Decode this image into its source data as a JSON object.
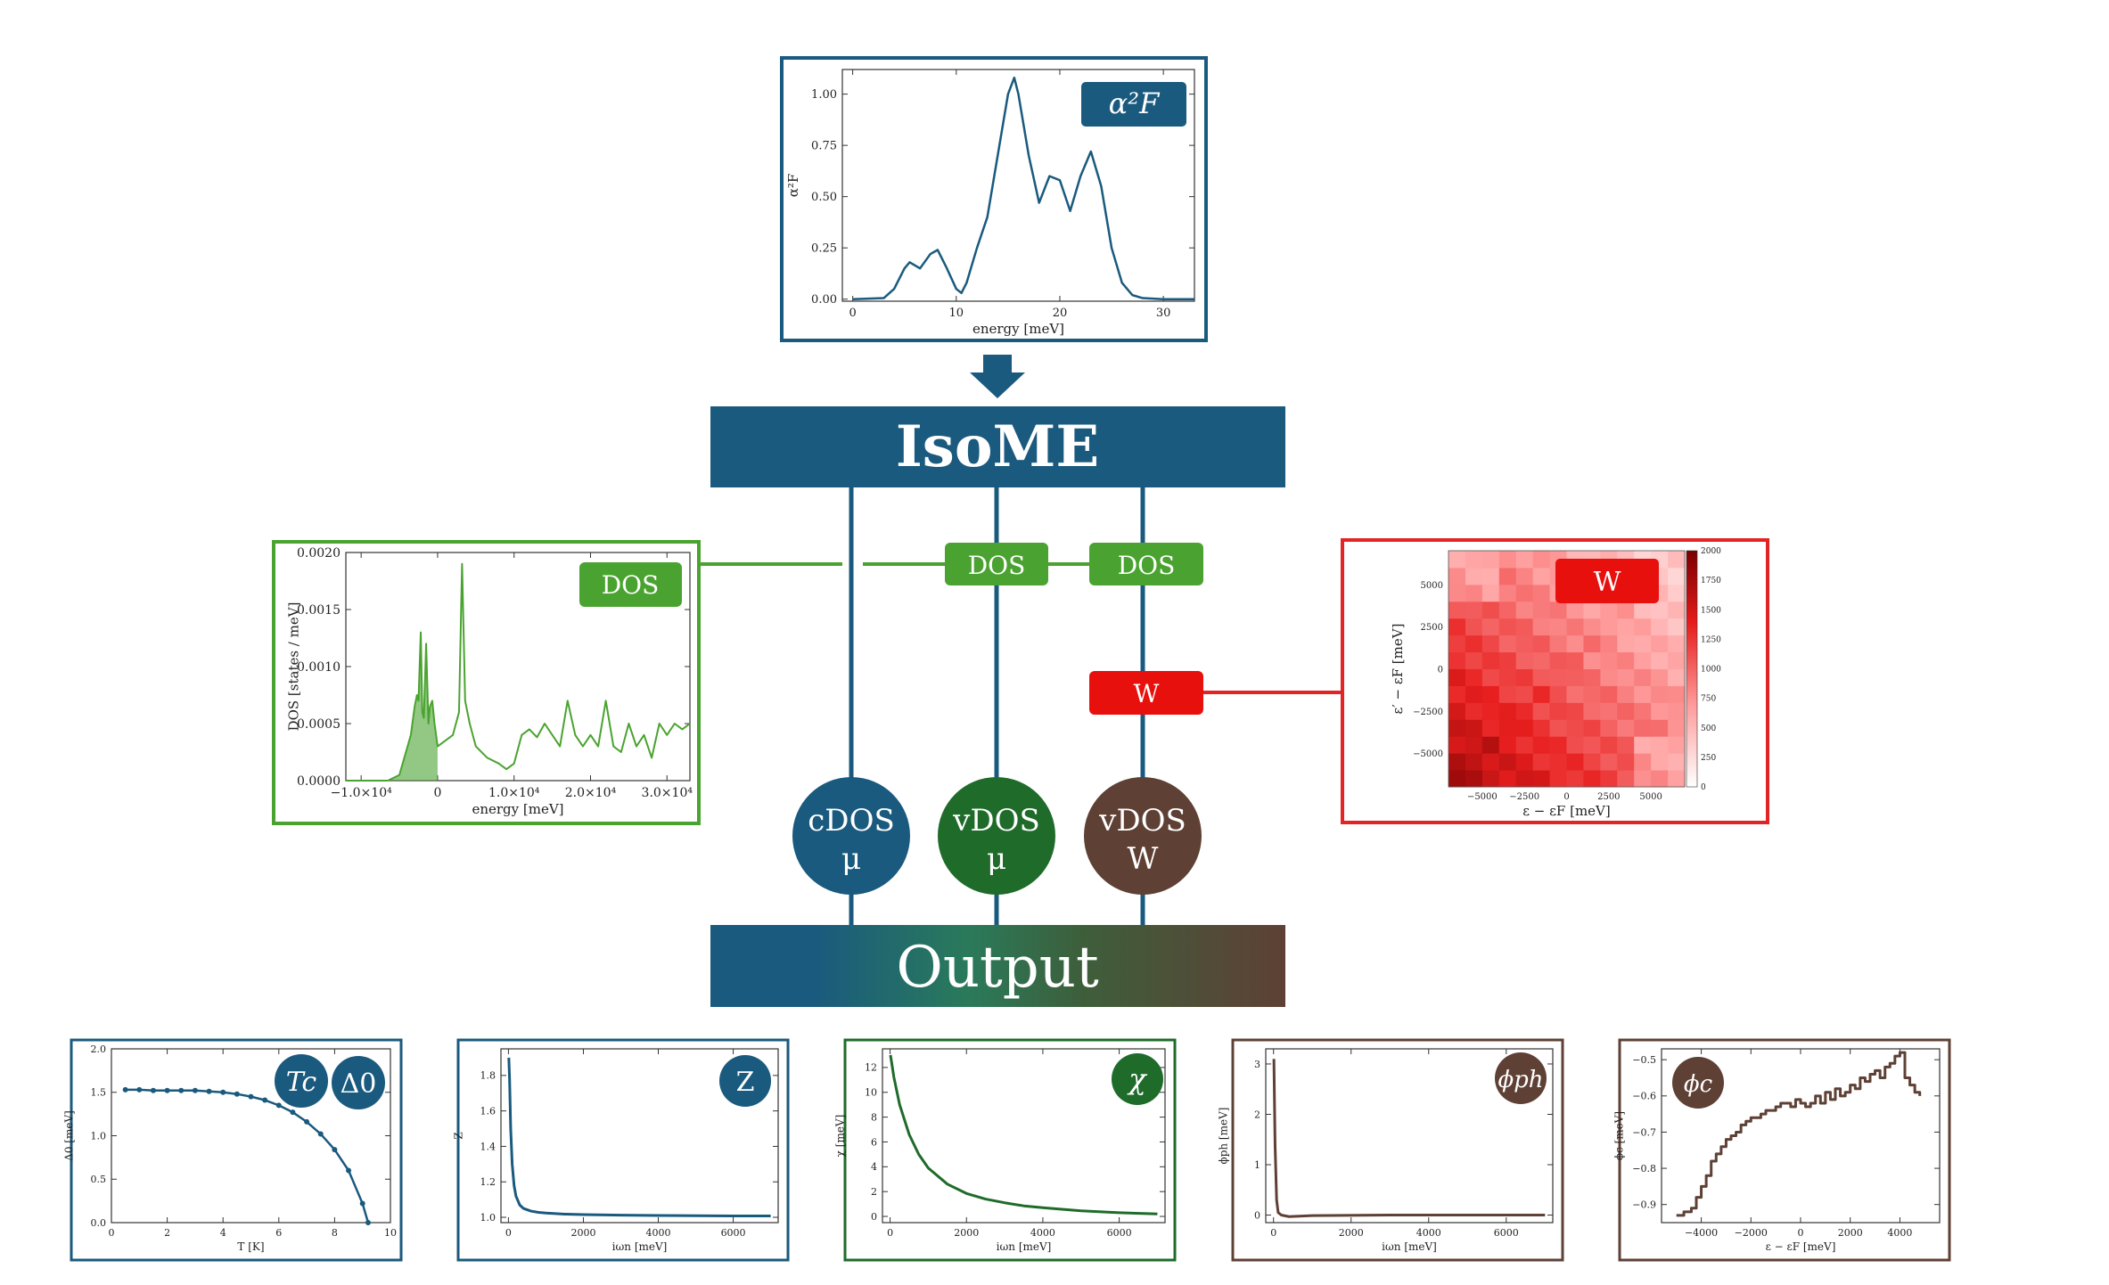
{
  "colors": {
    "blue": "#1a5a7e",
    "green_light": "#4aa330",
    "green_dark": "#1f6b2a",
    "brown": "#5e4035",
    "red": "#e8100d",
    "red_line": "#e32424"
  },
  "main_block": {
    "label": "IsoME"
  },
  "output_block": {
    "label": "Output"
  },
  "connector_tags": {
    "dos1": "DOS",
    "dos2": "DOS",
    "w": "W"
  },
  "circles": [
    {
      "line1": "cDOS",
      "line2": "μ"
    },
    {
      "line1": "vDOS",
      "line2": "μ"
    },
    {
      "line1": "vDOS",
      "line2": "W"
    }
  ],
  "panels": {
    "a2f": {
      "badge": "α²F"
    },
    "dos": {
      "badge": "DOS"
    },
    "w": {
      "badge": "W"
    },
    "tc": {
      "badge1": "Tc",
      "badge2": "Δ0"
    },
    "z": {
      "badge": "Z"
    },
    "chi": {
      "badge": "χ"
    },
    "phiph": {
      "badge": "ϕph"
    },
    "phic": {
      "badge": "ϕc"
    }
  },
  "chart_data": [
    {
      "id": "a2f",
      "type": "line",
      "xlabel": "energy [meV]",
      "ylabel": "α²F",
      "xlim": [
        -1,
        33
      ],
      "ylim": [
        -0.01,
        1.12
      ],
      "xticks": [
        "0",
        "10",
        "20",
        "30"
      ],
      "xtick_values": [
        0,
        10,
        20,
        30
      ],
      "yticks": [
        "0.00",
        "0.25",
        "0.50",
        "0.75",
        "1.00"
      ],
      "ytick_values": [
        0,
        0.25,
        0.5,
        0.75,
        1.0
      ],
      "x": [
        0,
        3,
        4,
        5,
        5.5,
        6.5,
        7.5,
        8.2,
        9,
        10,
        10.5,
        11,
        12,
        13,
        14,
        15,
        15.6,
        16,
        17,
        18,
        19,
        20,
        21,
        22,
        23,
        24,
        25,
        26,
        27,
        28,
        30,
        33
      ],
      "y": [
        0,
        0.005,
        0.05,
        0.15,
        0.18,
        0.15,
        0.22,
        0.24,
        0.16,
        0.05,
        0.03,
        0.08,
        0.25,
        0.4,
        0.7,
        1.0,
        1.08,
        1.0,
        0.7,
        0.47,
        0.6,
        0.58,
        0.43,
        0.6,
        0.72,
        0.55,
        0.25,
        0.08,
        0.02,
        0.005,
        0,
        0
      ]
    },
    {
      "id": "dos",
      "type": "area",
      "xlabel": "energy [meV]",
      "ylabel": "DOS [states / meV]",
      "xlim": [
        -12000,
        33000
      ],
      "ylim": [
        0,
        0.002
      ],
      "xticks": [
        "−1.0×10⁴",
        "0",
        "1.0×10⁴",
        "2.0×10⁴",
        "3.0×10⁴"
      ],
      "xtick_values": [
        -10000,
        0,
        10000,
        20000,
        30000
      ],
      "yticks": [
        "0.0000",
        "0.0005",
        "0.0010",
        "0.0015",
        "0.0020"
      ],
      "ytick_values": [
        0,
        0.0005,
        0.001,
        0.0015,
        0.002
      ],
      "x": [
        -12000,
        -6500,
        -5000,
        -3500,
        -3000,
        -2700,
        -2500,
        -2200,
        -2000,
        -1800,
        -1500,
        -1200,
        -1000,
        -700,
        -400,
        0,
        1000,
        2000,
        2800,
        3200,
        3600,
        4200,
        5000,
        6500,
        8000,
        9000,
        10000,
        11000,
        12000,
        13000,
        14000,
        15000,
        16000,
        17000,
        18000,
        19000,
        20000,
        21000,
        22000,
        23000,
        24000,
        25000,
        26000,
        27000,
        28000,
        29000,
        30000,
        31000,
        32000,
        33000
      ],
      "y": [
        0,
        0,
        5e-05,
        0.0004,
        0.00065,
        0.00075,
        0.0007,
        0.0013,
        0.0006,
        0.00055,
        0.0012,
        0.0005,
        0.00065,
        0.0007,
        0.0005,
        0.0003,
        0.00035,
        0.0004,
        0.0006,
        0.0019,
        0.0007,
        0.0005,
        0.0003,
        0.0002,
        0.00015,
        0.0001,
        0.00015,
        0.0004,
        0.00045,
        0.00038,
        0.0005,
        0.0004,
        0.0003,
        0.0007,
        0.0004,
        0.0003,
        0.0004,
        0.0003,
        0.0007,
        0.0003,
        0.00025,
        0.0005,
        0.0003,
        0.0004,
        0.0002,
        0.0005,
        0.0004,
        0.0005,
        0.00045,
        0.0005
      ],
      "filled_until_x": 0
    },
    {
      "id": "w",
      "type": "heatmap",
      "xlabel": "ε − εF [meV]",
      "ylabel": "ε′ − εF [meV]",
      "xlim": [
        -7000,
        7000
      ],
      "ylim": [
        -7000,
        7000
      ],
      "xticks": [
        "−5000",
        "−2500",
        "0",
        "2500",
        "5000"
      ],
      "xtick_values": [
        -5000,
        -2500,
        0,
        2500,
        5000
      ],
      "yticks": [
        "−5000",
        "−2500",
        "0",
        "2500",
        "5000"
      ],
      "ytick_values": [
        -5000,
        -2500,
        0,
        2500,
        5000
      ],
      "colorbar_ticks": [
        "0",
        "250",
        "500",
        "750",
        "1000",
        "1250",
        "1500",
        "1750",
        "2000"
      ],
      "colorbar_range": [
        0,
        2000
      ]
    },
    {
      "id": "tc",
      "type": "line",
      "xlabel": "T [K]",
      "ylabel": "Δ0 [meV]",
      "xlim": [
        0,
        10
      ],
      "ylim": [
        0,
        2.0
      ],
      "xticks": [
        "0",
        "2",
        "4",
        "6",
        "8",
        "10"
      ],
      "xtick_values": [
        0,
        2,
        4,
        6,
        8,
        10
      ],
      "yticks": [
        "0.0",
        "0.5",
        "1.0",
        "1.5",
        "2.0"
      ],
      "ytick_values": [
        0,
        0.5,
        1.0,
        1.5,
        2.0
      ],
      "x": [
        0.5,
        1.0,
        1.5,
        2.0,
        2.5,
        3.0,
        3.5,
        4.0,
        4.5,
        5.0,
        5.5,
        6.0,
        6.5,
        7.0,
        7.5,
        8.0,
        8.5,
        9.0,
        9.2
      ],
      "y": [
        1.53,
        1.53,
        1.52,
        1.52,
        1.52,
        1.52,
        1.51,
        1.5,
        1.48,
        1.45,
        1.41,
        1.35,
        1.27,
        1.16,
        1.02,
        0.84,
        0.6,
        0.22,
        0.0
      ]
    },
    {
      "id": "z",
      "type": "line",
      "xlabel": "iωn [meV]",
      "ylabel": "Z",
      "xlim": [
        -200,
        7200
      ],
      "ylim": [
        0.97,
        1.95
      ],
      "xticks": [
        "0",
        "2000",
        "4000",
        "6000"
      ],
      "xtick_values": [
        0,
        2000,
        4000,
        6000
      ],
      "yticks": [
        "1.0",
        "1.2",
        "1.4",
        "1.6",
        "1.8"
      ],
      "ytick_values": [
        1.0,
        1.2,
        1.4,
        1.6,
        1.8
      ],
      "x": [
        10,
        30,
        60,
        100,
        150,
        200,
        300,
        400,
        600,
        800,
        1000,
        1500,
        2000,
        3000,
        4000,
        5000,
        6000,
        7000
      ],
      "y": [
        1.9,
        1.78,
        1.5,
        1.3,
        1.18,
        1.12,
        1.07,
        1.05,
        1.035,
        1.028,
        1.024,
        1.018,
        1.015,
        1.012,
        1.01,
        1.009,
        1.008,
        1.008
      ]
    },
    {
      "id": "chi",
      "type": "line",
      "xlabel": "iωn [meV]",
      "ylabel": "χ [meV]",
      "xlim": [
        -200,
        7200
      ],
      "ylim": [
        -0.5,
        13.5
      ],
      "xticks": [
        "0",
        "2000",
        "4000",
        "6000"
      ],
      "xtick_values": [
        0,
        2000,
        4000,
        6000
      ],
      "yticks": [
        "0",
        "2",
        "4",
        "6",
        "8",
        "10",
        "12"
      ],
      "ytick_values": [
        0,
        2,
        4,
        6,
        8,
        10,
        12
      ],
      "x": [
        10,
        100,
        250,
        500,
        750,
        1000,
        1500,
        2000,
        2500,
        3000,
        3500,
        4000,
        5000,
        6000,
        7000
      ],
      "y": [
        13,
        11.2,
        9.0,
        6.6,
        5.0,
        3.9,
        2.6,
        1.85,
        1.4,
        1.1,
        0.85,
        0.7,
        0.45,
        0.3,
        0.2
      ]
    },
    {
      "id": "phiph",
      "type": "line",
      "xlabel": "iωn [meV]",
      "ylabel": "ϕph [meV]",
      "xlim": [
        -200,
        7200
      ],
      "ylim": [
        -0.15,
        3.3
      ],
      "xticks": [
        "0",
        "2000",
        "4000",
        "6000"
      ],
      "xtick_values": [
        0,
        2000,
        4000,
        6000
      ],
      "yticks": [
        "0",
        "1",
        "2",
        "3"
      ],
      "ytick_values": [
        0,
        1,
        2,
        3
      ],
      "x": [
        10,
        40,
        80,
        120,
        200,
        400,
        1000,
        3000,
        7000
      ],
      "y": [
        3.1,
        1.4,
        0.3,
        0.05,
        0.0,
        -0.03,
        -0.01,
        0.0,
        0.0
      ]
    },
    {
      "id": "phic",
      "type": "line",
      "xlabel": "ε − εF [meV]",
      "ylabel": "ϕc [meV]",
      "xlim": [
        -5600,
        5600
      ],
      "ylim": [
        -0.95,
        -0.47
      ],
      "xticks": [
        "−4000",
        "−2000",
        "0",
        "2000",
        "4000"
      ],
      "xtick_values": [
        -4000,
        -2000,
        0,
        2000,
        4000
      ],
      "yticks": [
        "−0.9",
        "−0.8",
        "−0.7",
        "−0.6",
        "−0.5"
      ],
      "ytick_values": [
        -0.9,
        -0.8,
        -0.7,
        -0.6,
        -0.5
      ],
      "x": [
        -5000,
        -4700,
        -4400,
        -4200,
        -4000,
        -3800,
        -3600,
        -3400,
        -3200,
        -3000,
        -2800,
        -2600,
        -2400,
        -2200,
        -2000,
        -1800,
        -1600,
        -1400,
        -1200,
        -1000,
        -800,
        -600,
        -400,
        -200,
        0,
        200,
        400,
        600,
        800,
        1000,
        1200,
        1400,
        1600,
        1800,
        2000,
        2200,
        2400,
        2600,
        2800,
        3000,
        3200,
        3400,
        3600,
        3800,
        4000,
        4200,
        4400,
        4600,
        4800
      ],
      "y": [
        -0.93,
        -0.92,
        -0.91,
        -0.88,
        -0.85,
        -0.82,
        -0.78,
        -0.76,
        -0.74,
        -0.72,
        -0.71,
        -0.7,
        -0.68,
        -0.67,
        -0.66,
        -0.66,
        -0.65,
        -0.64,
        -0.64,
        -0.63,
        -0.62,
        -0.62,
        -0.63,
        -0.61,
        -0.62,
        -0.63,
        -0.62,
        -0.6,
        -0.62,
        -0.59,
        -0.61,
        -0.58,
        -0.6,
        -0.59,
        -0.57,
        -0.58,
        -0.55,
        -0.56,
        -0.54,
        -0.53,
        -0.55,
        -0.52,
        -0.51,
        -0.49,
        -0.48,
        -0.55,
        -0.57,
        -0.59,
        -0.6
      ]
    }
  ]
}
